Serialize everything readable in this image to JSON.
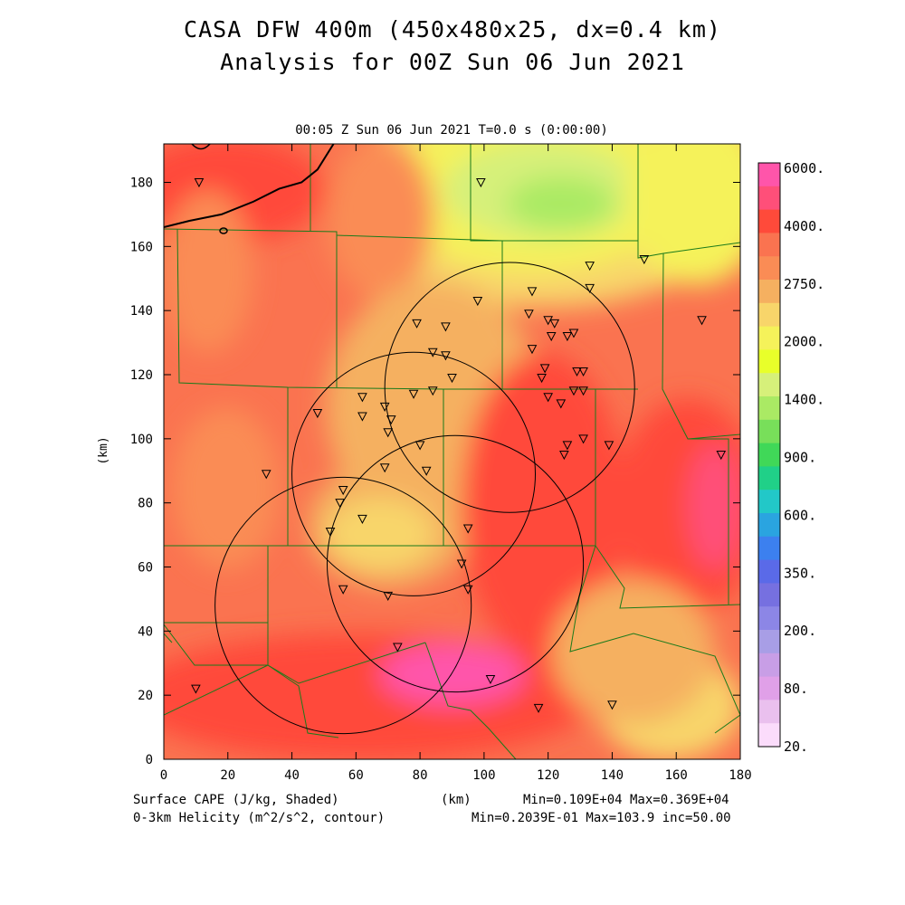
{
  "title_line1": "CASA DFW 400m (450x480x25, dx=0.4 km)",
  "title_line2": "Analysis for 00Z Sun 06 Jun 2021",
  "subtitle": "00:05 Z Sun 06 Jun 2021    T=0.0 s (0:00:00)",
  "footer": {
    "left1": "Surface CAPE (J/kg, Shaded)",
    "left2": "0-3km Helicity (m^2/s^2, contour)",
    "center": "(km)",
    "right1": "Min=0.109E+04 Max=0.369E+04",
    "right2": "Min=0.2039E-01 Max=103.9 inc=50.00"
  },
  "chart_data": {
    "type": "heatmap",
    "xlabel": "",
    "ylabel": "(km)",
    "xlim": [
      0,
      180
    ],
    "ylim": [
      0,
      192
    ],
    "x_ticks": [
      0,
      20,
      40,
      60,
      80,
      100,
      120,
      140,
      160,
      180
    ],
    "y_ticks": [
      0,
      20,
      40,
      60,
      80,
      100,
      120,
      140,
      160,
      180
    ],
    "colorbar": {
      "labels": [
        "6000.",
        "4000.",
        "2750.",
        "2000.",
        "1400.",
        "900.",
        "600.",
        "350.",
        "200.",
        "80.",
        "20."
      ],
      "colors": [
        "#ff55aa",
        "#ff4f79",
        "#ff4a3a",
        "#fa7350",
        "#fa8c55",
        "#f5b060",
        "#f8d56a",
        "#f5f25a",
        "#e8ff2a",
        "#d6f07a",
        "#aaea64",
        "#78df5a",
        "#40d858",
        "#20d088",
        "#22c8c8",
        "#2aa4e0",
        "#3c80ef",
        "#5a6ae8",
        "#7670e0",
        "#8c86e6",
        "#a89ee6",
        "#c89ee6",
        "#e0a0e8",
        "#eac0ee",
        "#fbdcfb"
      ]
    },
    "radar_rings_km": [
      {
        "cx": 78,
        "cy": 89,
        "r": 38
      },
      {
        "cx": 108,
        "cy": 116,
        "r": 39
      },
      {
        "cx": 91,
        "cy": 61,
        "r": 40
      },
      {
        "cx": 56,
        "cy": 48,
        "r": 40
      }
    ],
    "helicity_contour_km": [
      [
        0,
        166
      ],
      [
        8,
        168
      ],
      [
        18,
        170
      ],
      [
        28,
        174
      ],
      [
        36,
        178
      ],
      [
        43,
        180
      ],
      [
        48,
        184
      ],
      [
        53,
        192
      ]
    ],
    "station_markers_km": [
      [
        11,
        180
      ],
      [
        99,
        180
      ],
      [
        133,
        154
      ],
      [
        150,
        156
      ],
      [
        133,
        147
      ],
      [
        115,
        146
      ],
      [
        98,
        143
      ],
      [
        114,
        139
      ],
      [
        79,
        136
      ],
      [
        88,
        135
      ],
      [
        120,
        137
      ],
      [
        122,
        136
      ],
      [
        126,
        132
      ],
      [
        128,
        133
      ],
      [
        121,
        132
      ],
      [
        115,
        128
      ],
      [
        84,
        127
      ],
      [
        88,
        126
      ],
      [
        119,
        122
      ],
      [
        118,
        119
      ],
      [
        129,
        121
      ],
      [
        131,
        121
      ],
      [
        90,
        119
      ],
      [
        128,
        115
      ],
      [
        84,
        115
      ],
      [
        78,
        114
      ],
      [
        69,
        110
      ],
      [
        62,
        113
      ],
      [
        48,
        108
      ],
      [
        62,
        107
      ],
      [
        71,
        106
      ],
      [
        70,
        102
      ],
      [
        124,
        111
      ],
      [
        131,
        115
      ],
      [
        120,
        113
      ],
      [
        168,
        137
      ],
      [
        174,
        95
      ],
      [
        139,
        98
      ],
      [
        126,
        98
      ],
      [
        131,
        100
      ],
      [
        125,
        95
      ],
      [
        80,
        98
      ],
      [
        69,
        91
      ],
      [
        82,
        90
      ],
      [
        32,
        89
      ],
      [
        56,
        84
      ],
      [
        55,
        80
      ],
      [
        62,
        75
      ],
      [
        52,
        71
      ],
      [
        95,
        72
      ],
      [
        93,
        61
      ],
      [
        56,
        53
      ],
      [
        70,
        51
      ],
      [
        95,
        53
      ],
      [
        73,
        35
      ],
      [
        102,
        25
      ],
      [
        117,
        16
      ],
      [
        140,
        17
      ],
      [
        10,
        22
      ]
    ]
  }
}
